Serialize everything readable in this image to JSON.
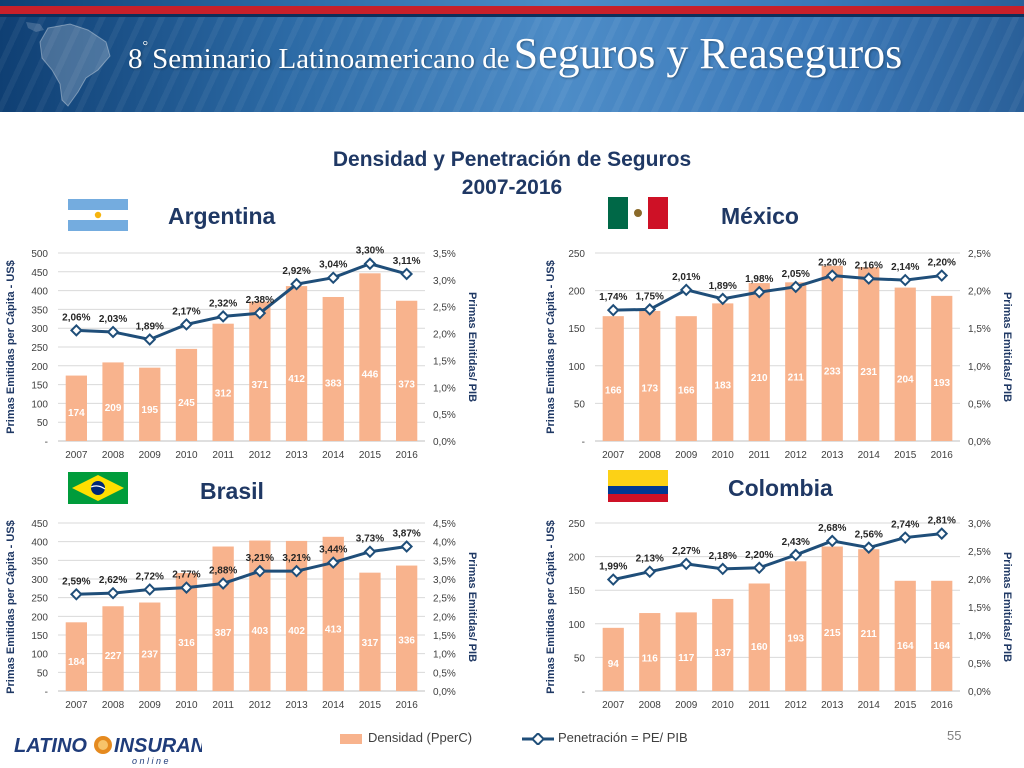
{
  "header": {
    "ordinal": "8",
    "ordinal_sup": "°",
    "title_small": "Seminario Latinoamericano de",
    "title_large": "Seguros y Reaseguros"
  },
  "slide": {
    "title_line1": "Densidad y Penetración de Seguros",
    "title_line2": "2007-2016",
    "page_number": "55"
  },
  "logo": {
    "main_left": "LATINO",
    "main_right": "INSURANCE",
    "sub": "o n   l i n e"
  },
  "legend": {
    "bar_label": "Densidad (PperC)",
    "line_label": "Penetración = PE/ PIB"
  },
  "colors": {
    "bar": "#f8b38d",
    "line": "#1f4e79",
    "title": "#1f3864",
    "banner": "#2c6aa5"
  },
  "chart_data": [
    {
      "type": "bar",
      "country": "Argentina",
      "flag": "argentina-flag",
      "categories": [
        "2007",
        "2008",
        "2009",
        "2010",
        "2011",
        "2012",
        "2013",
        "2014",
        "2015",
        "2016"
      ],
      "series": [
        {
          "name": "Densidad (PperC)",
          "type": "bar",
          "axis": "left",
          "values": [
            174,
            209,
            195,
            245,
            312,
            371,
            412,
            383,
            446,
            373
          ]
        },
        {
          "name": "Penetración = PE/ PIB",
          "type": "line",
          "axis": "right",
          "values": [
            2.06,
            2.03,
            1.89,
            2.17,
            2.32,
            2.38,
            2.92,
            3.04,
            3.3,
            3.11
          ]
        }
      ],
      "ylabel": "Primas Emitidas per Cápita - US$",
      "y2label": "Primas Emitidas/ PIB",
      "ylim": [
        0,
        500
      ],
      "yticks": [
        "-",
        "50",
        "100",
        "150",
        "200",
        "250",
        "300",
        "350",
        "400",
        "450",
        "500"
      ],
      "y2lim": [
        0,
        3.5
      ],
      "y2ticks": [
        "0,0%",
        "0,5%",
        "1,0%",
        "1,5%",
        "2,0%",
        "2,5%",
        "3,0%",
        "3,5%"
      ],
      "bar_labels": [
        "174",
        "209",
        "195",
        "245",
        "312",
        "371",
        "412",
        "383",
        "446",
        "373"
      ],
      "line_labels": [
        "2,06%",
        "2,03%",
        "1,89%",
        "2,17%",
        "2,32%",
        "2,38%",
        "2,92%",
        "3,04%",
        "3,30%",
        "3,11%"
      ],
      "grid": true
    },
    {
      "type": "bar",
      "country": "México",
      "flag": "mexico-flag",
      "categories": [
        "2007",
        "2008",
        "2009",
        "2010",
        "2011",
        "2012",
        "2013",
        "2014",
        "2015",
        "2016"
      ],
      "series": [
        {
          "name": "Densidad (PperC)",
          "type": "bar",
          "axis": "left",
          "values": [
            166,
            173,
            166,
            183,
            210,
            211,
            233,
            231,
            204,
            193
          ]
        },
        {
          "name": "Penetración = PE/ PIB",
          "type": "line",
          "axis": "right",
          "values": [
            1.74,
            1.75,
            2.01,
            1.89,
            1.98,
            2.05,
            2.2,
            2.16,
            2.14,
            2.2
          ]
        }
      ],
      "ylabel": "Primas Emitidas per Cápita - US$",
      "y2label": "Primas Emitidas/ PIB",
      "ylim": [
        0,
        250
      ],
      "yticks": [
        "-",
        "50",
        "100",
        "150",
        "200",
        "250"
      ],
      "y2lim": [
        0,
        2.5
      ],
      "y2ticks": [
        "0,0%",
        "0,5%",
        "1,0%",
        "1,5%",
        "2,0%",
        "2,5%"
      ],
      "bar_labels": [
        "166",
        "173",
        "166",
        "183",
        "210",
        "211",
        "233",
        "231",
        "204",
        "193"
      ],
      "line_labels": [
        "1,74%",
        "1,75%",
        "2,01%",
        "1,89%",
        "1,98%",
        "2,05%",
        "2,20%",
        "2,16%",
        "2,14%",
        "2,20%"
      ],
      "grid": true
    },
    {
      "type": "bar",
      "country": "Brasil",
      "flag": "brasil-flag",
      "categories": [
        "2007",
        "2008",
        "2009",
        "2010",
        "2011",
        "2012",
        "2013",
        "2014",
        "2015",
        "2016"
      ],
      "series": [
        {
          "name": "Densidad (PperC)",
          "type": "bar",
          "axis": "left",
          "values": [
            184,
            227,
            237,
            316,
            387,
            403,
            402,
            413,
            317,
            336
          ]
        },
        {
          "name": "Penetración = PE/ PIB",
          "type": "line",
          "axis": "right",
          "values": [
            2.59,
            2.62,
            2.72,
            2.77,
            2.88,
            3.21,
            3.21,
            3.44,
            3.73,
            3.87
          ]
        }
      ],
      "ylabel": "Primas Emitidas per Cápita - US$",
      "y2label": "Primas Emitidas/ PIB",
      "ylim": [
        0,
        450
      ],
      "yticks": [
        "-",
        "50",
        "100",
        "150",
        "200",
        "250",
        "300",
        "350",
        "400",
        "450"
      ],
      "y2lim": [
        0,
        4.5
      ],
      "y2ticks": [
        "0,0%",
        "0,5%",
        "1,0%",
        "1,5%",
        "2,0%",
        "2,5%",
        "3,0%",
        "3,5%",
        "4,0%",
        "4,5%"
      ],
      "bar_labels": [
        "184",
        "227",
        "237",
        "316",
        "387",
        "403",
        "402",
        "413",
        "317",
        "336"
      ],
      "line_labels": [
        "2,59%",
        "2,62%",
        "2,72%",
        "2,77%",
        "2,88%",
        "3,21%",
        "3,21%",
        "3,44%",
        "3,73%",
        "3,87%"
      ],
      "grid": true
    },
    {
      "type": "bar",
      "country": "Colombia",
      "flag": "colombia-flag",
      "categories": [
        "2007",
        "2008",
        "2009",
        "2010",
        "2011",
        "2012",
        "2013",
        "2014",
        "2015",
        "2016"
      ],
      "series": [
        {
          "name": "Densidad (PperC)",
          "type": "bar",
          "axis": "left",
          "values": [
            94,
            116,
            117,
            137,
            160,
            193,
            215,
            211,
            164,
            164
          ]
        },
        {
          "name": "Penetración = PE/ PIB",
          "type": "line",
          "axis": "right",
          "values": [
            1.99,
            2.13,
            2.27,
            2.18,
            2.2,
            2.43,
            2.68,
            2.56,
            2.74,
            2.81
          ]
        }
      ],
      "ylabel": "Primas Emitidas per Cápita - US$",
      "y2label": "Primas Emitidas/ PIB",
      "ylim": [
        0,
        250
      ],
      "yticks": [
        "-",
        "50",
        "100",
        "150",
        "200",
        "250"
      ],
      "y2lim": [
        0,
        3.0
      ],
      "y2ticks": [
        "0,0%",
        "0,5%",
        "1,0%",
        "1,5%",
        "2,0%",
        "2,5%",
        "3,0%"
      ],
      "bar_labels": [
        "94",
        "116",
        "117",
        "137",
        "160",
        "193",
        "215",
        "211",
        "164",
        "164"
      ],
      "line_labels": [
        "1,99%",
        "2,13%",
        "2,27%",
        "2,18%",
        "2,20%",
        "2,43%",
        "2,68%",
        "2,56%",
        "2,74%",
        "2,81%"
      ],
      "grid": true
    }
  ]
}
